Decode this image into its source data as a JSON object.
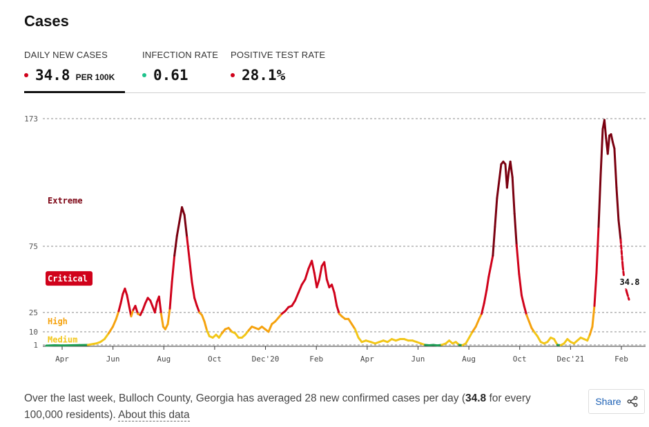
{
  "title": "Cases",
  "tabs": [
    {
      "label": "DAILY NEW CASES",
      "value": "34.8",
      "unit": "PER 100K",
      "dot_color": "#d0021b",
      "active": true
    },
    {
      "label": "INFECTION RATE",
      "value": "0.61",
      "unit": "",
      "dot_color": "#1ec28b",
      "active": false
    },
    {
      "label": "POSITIVE TEST RATE",
      "value": "28.1%",
      "unit": "",
      "dot_color": "#d0021b",
      "active": false
    }
  ],
  "footer": {
    "text_before": "Over the last week, Bulloch County, Georgia has averaged 28 new confirmed cases per day (",
    "bold_value": "34.8",
    "text_after": " for every 100,000 residents). ",
    "about_link": "About this data"
  },
  "share": {
    "label": "Share",
    "icon": "share-icon"
  },
  "chart_data": {
    "type": "line",
    "y_ticks": [
      1,
      10,
      25,
      75,
      173
    ],
    "y_range": [
      0,
      173
    ],
    "x_ticks": [
      "Apr",
      "Jun",
      "Aug",
      "Oct",
      "Dec'20",
      "Feb",
      "Apr",
      "Jun",
      "Aug",
      "Oct",
      "Dec'21",
      "Feb"
    ],
    "zones": [
      {
        "label": "Extreme",
        "min": 75,
        "color": "#7a0010"
      },
      {
        "label": "Critical",
        "min": 25,
        "color": "#d0021b"
      },
      {
        "label": "High",
        "min": 10,
        "color": "#f5a20e"
      },
      {
        "label": "Medium",
        "min": 1,
        "color": "#f2c618"
      },
      {
        "label": "",
        "min": 0,
        "color": "#1f9d55"
      }
    ],
    "latest_label": "34.8",
    "series": [
      {
        "values": [
          [
            0,
            0
          ],
          [
            2,
            0.5
          ],
          [
            4,
            0.3
          ],
          [
            6,
            0.5
          ],
          [
            8,
            0.8
          ],
          [
            10,
            1
          ],
          [
            12,
            2
          ],
          [
            13,
            3
          ],
          [
            14,
            5
          ],
          [
            15,
            9
          ],
          [
            16,
            14
          ],
          [
            16.8,
            20
          ],
          [
            17.4,
            26
          ],
          [
            17.9,
            32
          ],
          [
            18.4,
            39
          ],
          [
            18.9,
            43
          ],
          [
            19.4,
            38
          ],
          [
            19.9,
            30
          ],
          [
            20.4,
            22
          ],
          [
            20.9,
            27
          ],
          [
            21.4,
            30
          ],
          [
            22,
            24
          ],
          [
            22.6,
            23
          ],
          [
            23.2,
            27
          ],
          [
            23.8,
            32
          ],
          [
            24.4,
            36
          ],
          [
            25,
            34
          ],
          [
            25.5,
            30
          ],
          [
            26.1,
            25
          ],
          [
            26.6,
            33
          ],
          [
            27.1,
            37
          ],
          [
            27.6,
            24
          ],
          [
            28.1,
            14
          ],
          [
            28.6,
            12
          ],
          [
            29.2,
            16
          ],
          [
            29.7,
            28
          ],
          [
            30.2,
            48
          ],
          [
            30.8,
            68
          ],
          [
            31.4,
            83
          ],
          [
            32,
            94
          ],
          [
            32.6,
            105
          ],
          [
            33.2,
            99
          ],
          [
            33.8,
            82
          ],
          [
            34.4,
            65
          ],
          [
            35,
            48
          ],
          [
            35.6,
            36
          ],
          [
            36.2,
            30
          ],
          [
            36.8,
            25
          ],
          [
            37.4,
            23
          ],
          [
            38,
            18
          ],
          [
            38.6,
            11
          ],
          [
            39.2,
            7
          ],
          [
            40,
            6
          ],
          [
            40.8,
            8
          ],
          [
            41.5,
            6
          ],
          [
            42.2,
            9
          ],
          [
            43,
            12
          ],
          [
            43.8,
            13
          ],
          [
            44.6,
            10
          ],
          [
            45.4,
            9
          ],
          [
            46.2,
            6
          ],
          [
            47,
            6
          ],
          [
            47.8,
            8
          ],
          [
            48.6,
            11
          ],
          [
            49.4,
            14
          ],
          [
            50.2,
            13
          ],
          [
            51,
            12
          ],
          [
            51.8,
            14
          ],
          [
            52.6,
            12
          ],
          [
            53.4,
            10
          ],
          [
            54.2,
            16
          ],
          [
            55,
            18
          ],
          [
            55.8,
            21
          ],
          [
            56.6,
            24
          ],
          [
            57.4,
            26
          ],
          [
            58.2,
            29
          ],
          [
            59,
            30
          ],
          [
            59.8,
            34
          ],
          [
            60.6,
            40
          ],
          [
            61.4,
            46
          ],
          [
            62.2,
            50
          ],
          [
            63,
            58
          ],
          [
            63.8,
            64
          ],
          [
            64.4,
            55
          ],
          [
            65,
            44
          ],
          [
            65.6,
            50
          ],
          [
            66.2,
            60
          ],
          [
            66.8,
            63
          ],
          [
            67.4,
            50
          ],
          [
            68,
            44
          ],
          [
            68.6,
            46
          ],
          [
            69.2,
            40
          ],
          [
            69.8,
            30
          ],
          [
            70.4,
            24
          ],
          [
            71,
            22
          ],
          [
            71.8,
            20
          ],
          [
            72.6,
            20
          ],
          [
            73.4,
            16
          ],
          [
            74.2,
            12
          ],
          [
            75,
            6
          ],
          [
            75.8,
            3
          ],
          [
            76.8,
            4
          ],
          [
            78,
            3
          ],
          [
            79,
            2
          ],
          [
            80,
            3
          ],
          [
            81,
            4
          ],
          [
            82,
            3
          ],
          [
            83,
            5
          ],
          [
            84,
            4
          ],
          [
            85,
            5
          ],
          [
            86,
            5
          ],
          [
            87,
            4
          ],
          [
            88,
            4
          ],
          [
            89,
            3
          ],
          [
            90,
            2
          ],
          [
            91,
            1
          ],
          [
            92,
            0.5
          ],
          [
            93,
            1
          ],
          [
            94,
            0.3
          ],
          [
            95,
            1
          ],
          [
            96,
            2
          ],
          [
            96.8,
            4
          ],
          [
            97.6,
            2
          ],
          [
            98.4,
            3
          ],
          [
            99.2,
            1
          ],
          [
            100,
            0.5
          ],
          [
            100.8,
            2
          ],
          [
            101.6,
            6
          ],
          [
            102.4,
            10
          ],
          [
            103.2,
            14
          ],
          [
            104,
            20
          ],
          [
            104.6,
            24
          ],
          [
            105.2,
            32
          ],
          [
            105.8,
            42
          ],
          [
            106.3,
            52
          ],
          [
            106.8,
            60
          ],
          [
            107.3,
            68
          ],
          [
            107.8,
            90
          ],
          [
            108.3,
            112
          ],
          [
            108.8,
            125
          ],
          [
            109.3,
            138
          ],
          [
            109.8,
            140
          ],
          [
            110.3,
            138
          ],
          [
            110.7,
            120
          ],
          [
            111.1,
            132
          ],
          [
            111.5,
            140
          ],
          [
            112,
            128
          ],
          [
            112.5,
            100
          ],
          [
            113,
            76
          ],
          [
            113.6,
            54
          ],
          [
            114.2,
            38
          ],
          [
            114.8,
            30
          ],
          [
            115.4,
            23
          ],
          [
            116,
            18
          ],
          [
            116.6,
            13
          ],
          [
            117.2,
            10
          ],
          [
            118,
            7
          ],
          [
            118.8,
            3
          ],
          [
            119.6,
            2
          ],
          [
            120.4,
            3
          ],
          [
            121.2,
            6
          ],
          [
            122,
            5
          ],
          [
            122.8,
            1
          ],
          [
            123.6,
            0.5
          ],
          [
            124.4,
            2
          ],
          [
            125.2,
            5
          ],
          [
            126,
            3
          ],
          [
            126.8,
            2
          ],
          [
            127.6,
            4
          ],
          [
            128.4,
            6
          ],
          [
            129.2,
            5
          ],
          [
            130,
            4
          ],
          [
            130.6,
            8
          ],
          [
            131.2,
            14
          ],
          [
            131.7,
            30
          ],
          [
            132.2,
            55
          ],
          [
            132.7,
            90
          ],
          [
            133.2,
            130
          ],
          [
            133.7,
            165
          ],
          [
            134.1,
            172
          ],
          [
            134.5,
            158
          ],
          [
            134.9,
            146
          ],
          [
            135.3,
            160
          ],
          [
            135.7,
            161
          ],
          [
            136.1,
            155
          ],
          [
            136.5,
            150
          ],
          [
            137,
            120
          ],
          [
            137.5,
            95
          ],
          [
            138,
            80
          ],
          [
            138.5,
            60
          ],
          [
            139,
            46
          ],
          [
            139.5,
            40
          ],
          [
            140,
            34.8
          ]
        ]
      }
    ]
  }
}
